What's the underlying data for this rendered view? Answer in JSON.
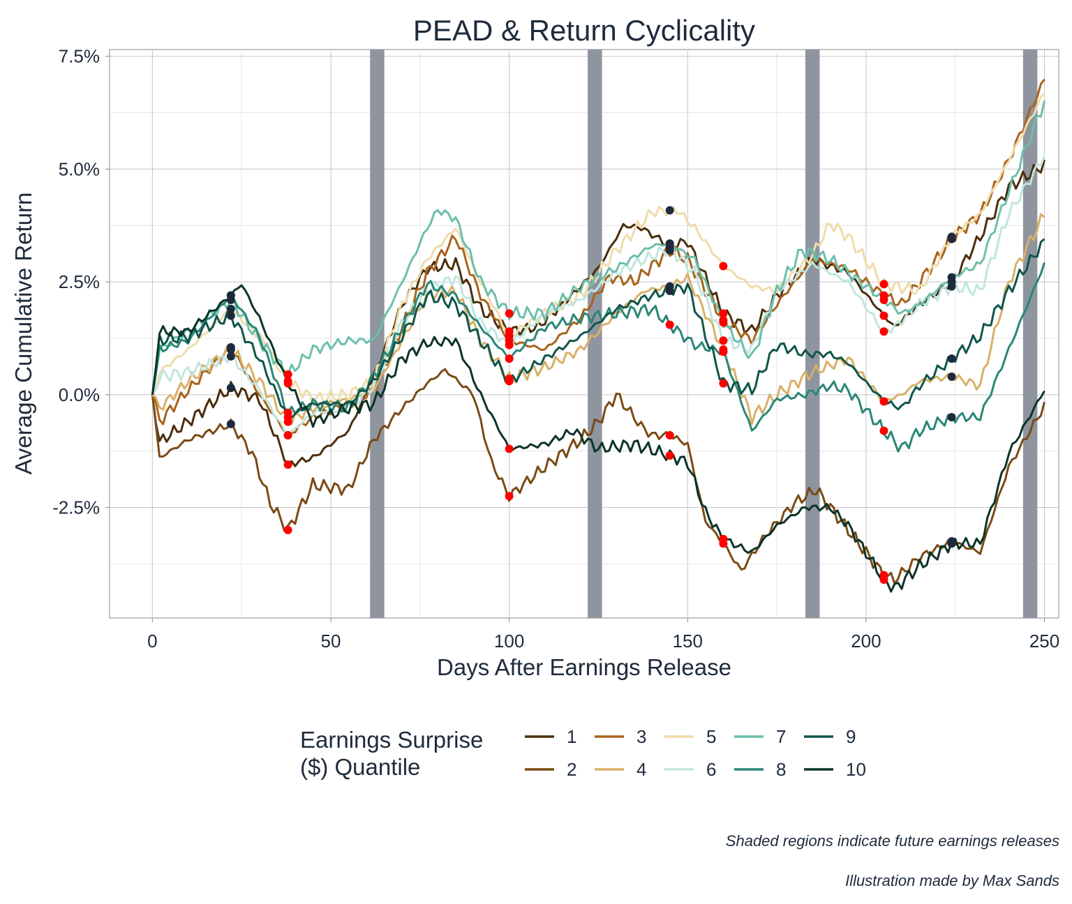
{
  "chart_data": {
    "type": "line",
    "title": "PEAD & Return Cyclicality",
    "xlabel": "Days After Earnings Release",
    "ylabel": "Average Cumulative Return",
    "xlim": [
      -12,
      254
    ],
    "ylim": [
      -4.95,
      7.65
    ],
    "x_ticks": [
      0,
      50,
      100,
      150,
      200,
      250
    ],
    "x_tick_labels": [
      "0",
      "50",
      "100",
      "150",
      "200",
      "250"
    ],
    "y_ticks": [
      -2.5,
      0.0,
      2.5,
      5.0,
      7.5
    ],
    "y_tick_labels": [
      "-2.5%",
      "0.0%",
      "2.5%",
      "5.0%",
      "7.5%"
    ],
    "grid": true,
    "legend_title_lines": [
      "Earnings Surprise",
      "($) Quantile"
    ],
    "legend_position": "bottom",
    "shaded_regions": [
      [
        61,
        65
      ],
      [
        122,
        126
      ],
      [
        183,
        187
      ],
      [
        244,
        248
      ]
    ],
    "shade_color": "#8e959e",
    "marker_colors": {
      "high": "#1e2b3c",
      "low": "#ff0000"
    },
    "series": [
      {
        "name": "1",
        "color": "#4a2d0b",
        "marker_days": [
          22,
          38,
          100,
          145,
          160,
          205,
          224
        ],
        "x": [
          0,
          2,
          10,
          22,
          30,
          38,
          45,
          55,
          62,
          70,
          77,
          85,
          92,
          100,
          108,
          115,
          125,
          132,
          137,
          145,
          150,
          160,
          168,
          175,
          185,
          195,
          205,
          208,
          215,
          224,
          232,
          240,
          250
        ],
        "y": [
          0.0,
          -1.05,
          -0.6,
          0.15,
          -0.1,
          -1.55,
          -1.4,
          -0.8,
          0.4,
          2.0,
          2.8,
          2.9,
          1.9,
          1.4,
          1.5,
          2.0,
          2.8,
          3.75,
          3.7,
          3.3,
          3.4,
          1.8,
          1.4,
          2.2,
          3.0,
          2.7,
          1.75,
          1.5,
          2.0,
          2.5,
          3.5,
          4.6,
          5.1
        ]
      },
      {
        "name": "2",
        "color": "#7a4a14",
        "marker_days": [
          22,
          38,
          100,
          145,
          160,
          205,
          224
        ],
        "x": [
          0,
          2,
          10,
          22,
          28,
          33,
          38,
          45,
          55,
          62,
          70,
          77,
          82,
          90,
          95,
          100,
          110,
          120,
          125,
          130,
          137,
          140,
          145,
          150,
          155,
          160,
          165,
          172,
          180,
          186,
          195,
          205,
          208,
          215,
          224,
          232,
          240,
          250
        ],
        "y": [
          0.0,
          -1.4,
          -1.0,
          -0.65,
          -1.3,
          -2.4,
          -3.0,
          -2.0,
          -2.1,
          -1.0,
          -0.3,
          0.25,
          0.55,
          0.0,
          -1.5,
          -2.25,
          -1.6,
          -1.0,
          -0.6,
          0.0,
          -0.7,
          -0.9,
          -0.9,
          -1.1,
          -2.8,
          -3.3,
          -3.9,
          -3.1,
          -2.4,
          -2.1,
          -3.0,
          -4.0,
          -4.1,
          -3.6,
          -3.25,
          -3.5,
          -1.6,
          -0.25
        ]
      },
      {
        "name": "3",
        "color": "#a8631d",
        "marker_days": [
          22,
          38,
          100,
          145,
          160,
          205,
          224
        ],
        "x": [
          0,
          2,
          10,
          22,
          30,
          38,
          45,
          55,
          62,
          70,
          77,
          85,
          92,
          100,
          110,
          120,
          128,
          135,
          145,
          150,
          160,
          168,
          175,
          185,
          195,
          205,
          210,
          215,
          224,
          232,
          240,
          250
        ],
        "y": [
          0.0,
          -0.6,
          0.1,
          1.05,
          0.0,
          -0.9,
          -0.5,
          -0.2,
          0.1,
          1.5,
          2.7,
          3.5,
          2.2,
          1.2,
          1.0,
          1.7,
          2.6,
          2.5,
          3.2,
          3.0,
          1.65,
          1.2,
          2.0,
          3.0,
          2.8,
          2.2,
          2.0,
          2.5,
          3.45,
          4.0,
          5.2,
          7.0
        ]
      },
      {
        "name": "4",
        "color": "#d8b068",
        "marker_days": [
          22,
          38,
          100,
          145,
          160,
          205,
          224
        ],
        "x": [
          0,
          2,
          10,
          22,
          30,
          38,
          45,
          55,
          62,
          70,
          77,
          85,
          92,
          100,
          110,
          120,
          130,
          138,
          145,
          150,
          160,
          168,
          175,
          185,
          195,
          205,
          210,
          215,
          224,
          232,
          240,
          250
        ],
        "y": [
          0.0,
          -0.3,
          0.3,
          1.0,
          0.3,
          -0.6,
          -0.3,
          -0.1,
          0.1,
          1.2,
          2.2,
          2.3,
          1.2,
          0.35,
          0.6,
          1.0,
          1.8,
          2.3,
          2.4,
          2.6,
          1.0,
          -0.5,
          0.0,
          0.5,
          0.8,
          -0.15,
          0.0,
          0.3,
          0.4,
          0.2,
          2.5,
          4.0
        ]
      },
      {
        "name": "5",
        "color": "#efdcab",
        "marker_days": [
          22,
          38,
          100,
          145,
          160,
          205,
          224
        ],
        "x": [
          0,
          2,
          10,
          22,
          30,
          38,
          45,
          55,
          62,
          70,
          77,
          85,
          92,
          100,
          110,
          120,
          130,
          140,
          147,
          152,
          160,
          168,
          175,
          185,
          190,
          195,
          205,
          215,
          224,
          232,
          240,
          250
        ],
        "y": [
          0.0,
          0.5,
          1.0,
          1.9,
          1.3,
          0.3,
          -0.1,
          0.0,
          0.3,
          2.0,
          3.0,
          3.7,
          2.5,
          1.3,
          1.8,
          2.2,
          3.2,
          4.05,
          4.1,
          3.7,
          2.85,
          2.4,
          2.3,
          3.1,
          3.8,
          3.5,
          2.45,
          2.3,
          3.5,
          4.0,
          5.2,
          6.7
        ]
      },
      {
        "name": "6",
        "color": "#c0e6df",
        "marker_days": [
          22,
          38,
          100,
          145,
          160,
          205,
          224
        ],
        "x": [
          0,
          2,
          10,
          22,
          30,
          38,
          45,
          55,
          62,
          70,
          77,
          85,
          92,
          100,
          110,
          120,
          130,
          138,
          145,
          152,
          160,
          168,
          175,
          185,
          195,
          205,
          208,
          215,
          224,
          232,
          240,
          250
        ],
        "y": [
          0.0,
          0.4,
          0.5,
          0.85,
          0.1,
          -0.9,
          -0.4,
          -0.3,
          0.2,
          1.6,
          2.3,
          2.6,
          1.6,
          1.1,
          1.8,
          2.1,
          2.7,
          3.0,
          3.25,
          2.7,
          1.2,
          1.0,
          2.3,
          2.9,
          2.5,
          1.4,
          1.5,
          2.0,
          2.4,
          2.3,
          4.0,
          5.3
        ]
      },
      {
        "name": "7",
        "color": "#6cbfab",
        "marker_days": [
          22,
          38,
          100,
          145,
          160,
          205,
          224
        ],
        "x": [
          0,
          2,
          10,
          22,
          30,
          38,
          45,
          55,
          62,
          70,
          77,
          80,
          85,
          92,
          100,
          110,
          120,
          130,
          140,
          145,
          152,
          160,
          168,
          175,
          182,
          190,
          195,
          205,
          210,
          215,
          224,
          232,
          240,
          250
        ],
        "y": [
          0.0,
          1.0,
          1.4,
          2.1,
          1.2,
          0.45,
          1.0,
          1.2,
          1.2,
          2.5,
          3.7,
          4.1,
          3.9,
          2.5,
          1.8,
          1.8,
          2.4,
          2.8,
          3.3,
          3.35,
          3.0,
          1.6,
          0.8,
          2.3,
          3.2,
          3.0,
          2.7,
          2.1,
          1.8,
          2.0,
          2.6,
          2.9,
          4.5,
          6.5
        ]
      },
      {
        "name": "8",
        "color": "#2a8677",
        "marker_days": [
          22,
          38,
          100,
          145,
          160,
          205,
          224
        ],
        "x": [
          0,
          2,
          10,
          22,
          30,
          38,
          45,
          55,
          62,
          70,
          77,
          85,
          92,
          100,
          110,
          120,
          130,
          140,
          145,
          152,
          160,
          168,
          175,
          183,
          190,
          195,
          205,
          210,
          215,
          224,
          232,
          240,
          250
        ],
        "y": [
          0.0,
          1.0,
          1.2,
          2.2,
          1.3,
          -0.4,
          -0.2,
          -0.3,
          0.4,
          1.5,
          2.45,
          2.2,
          1.5,
          0.8,
          1.5,
          1.7,
          1.8,
          1.9,
          1.55,
          1.1,
          0.95,
          -0.8,
          -0.1,
          0.0,
          0.2,
          0.1,
          -0.8,
          -1.2,
          -0.8,
          -0.5,
          -0.5,
          1.0,
          2.9
        ]
      },
      {
        "name": "9",
        "color": "#10554b",
        "marker_days": [
          22,
          38,
          100,
          145,
          160,
          205,
          224
        ],
        "x": [
          0,
          2,
          10,
          22,
          30,
          38,
          45,
          55,
          62,
          70,
          77,
          85,
          92,
          100,
          110,
          120,
          130,
          140,
          145,
          150,
          160,
          168,
          175,
          183,
          190,
          195,
          205,
          210,
          215,
          224,
          232,
          240,
          250
        ],
        "y": [
          0.0,
          1.2,
          1.3,
          1.75,
          0.8,
          -0.5,
          -0.2,
          -0.2,
          0.3,
          1.3,
          2.2,
          2.0,
          1.2,
          0.3,
          0.8,
          1.3,
          1.9,
          2.2,
          2.3,
          2.4,
          0.25,
          0.1,
          1.1,
          0.9,
          0.9,
          0.7,
          -0.15,
          -0.3,
          0.2,
          0.8,
          1.3,
          2.3,
          3.4
        ]
      },
      {
        "name": "10",
        "color": "#0c3328",
        "marker_days": [
          22,
          38,
          100,
          145,
          160,
          205,
          224
        ],
        "x": [
          0,
          2,
          10,
          22,
          25,
          30,
          38,
          45,
          55,
          62,
          70,
          77,
          85,
          92,
          100,
          110,
          118,
          125,
          135,
          145,
          150,
          155,
          160,
          168,
          175,
          183,
          190,
          195,
          205,
          208,
          215,
          224,
          232,
          240,
          250
        ],
        "y": [
          0.0,
          1.4,
          1.4,
          2.2,
          2.45,
          1.7,
          0.25,
          -0.6,
          -0.3,
          -0.2,
          0.8,
          1.15,
          1.2,
          0.0,
          -1.2,
          -1.1,
          -0.8,
          -1.2,
          -1.1,
          -1.35,
          -1.5,
          -2.6,
          -3.2,
          -3.5,
          -2.9,
          -2.5,
          -2.5,
          -2.9,
          -4.1,
          -4.3,
          -3.8,
          -3.3,
          -3.3,
          -1.3,
          0.1
        ]
      }
    ]
  },
  "captions": {
    "note": "Shaded regions indicate future earnings releases",
    "credit": "Illustration made by Max Sands"
  }
}
